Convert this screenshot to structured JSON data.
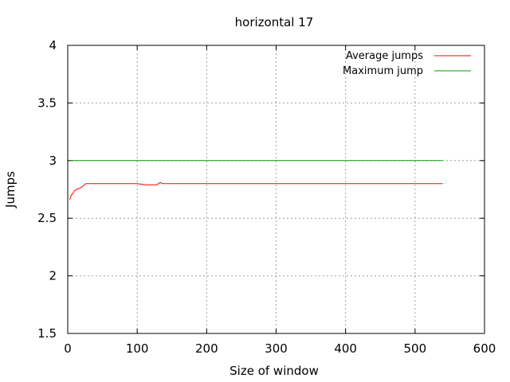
{
  "chart_data": {
    "type": "line",
    "title": "horizontal 17",
    "xlabel": "Size of window",
    "ylabel": "Jumps",
    "xlim": [
      0,
      600
    ],
    "ylim": [
      1.5,
      4
    ],
    "xticks": [
      "0",
      "100",
      "200",
      "300",
      "400",
      "500",
      "600"
    ],
    "yticks": [
      "1.5",
      "2",
      "2.5",
      "3",
      "3.5",
      "4"
    ],
    "grid": true,
    "legend_position": "top-right",
    "series": [
      {
        "name": "Average jumps",
        "color": "#ff0000",
        "points": [
          [
            3,
            2.66
          ],
          [
            5,
            2.7
          ],
          [
            8,
            2.72
          ],
          [
            10,
            2.74
          ],
          [
            13,
            2.75
          ],
          [
            17,
            2.76
          ],
          [
            20,
            2.77
          ],
          [
            22,
            2.78
          ],
          [
            24,
            2.79
          ],
          [
            26,
            2.8
          ],
          [
            40,
            2.8
          ],
          [
            60,
            2.8
          ],
          [
            80,
            2.8
          ],
          [
            100,
            2.8
          ],
          [
            112,
            2.79
          ],
          [
            120,
            2.79
          ],
          [
            128,
            2.79
          ],
          [
            133,
            2.81
          ],
          [
            137,
            2.8
          ],
          [
            150,
            2.8
          ],
          [
            200,
            2.8
          ],
          [
            300,
            2.8
          ],
          [
            400,
            2.8
          ],
          [
            500,
            2.8
          ],
          [
            540,
            2.8
          ]
        ]
      },
      {
        "name": "Maximum jump",
        "color": "#00a000",
        "points": [
          [
            3,
            3.0
          ],
          [
            540,
            3.0
          ]
        ]
      }
    ]
  }
}
